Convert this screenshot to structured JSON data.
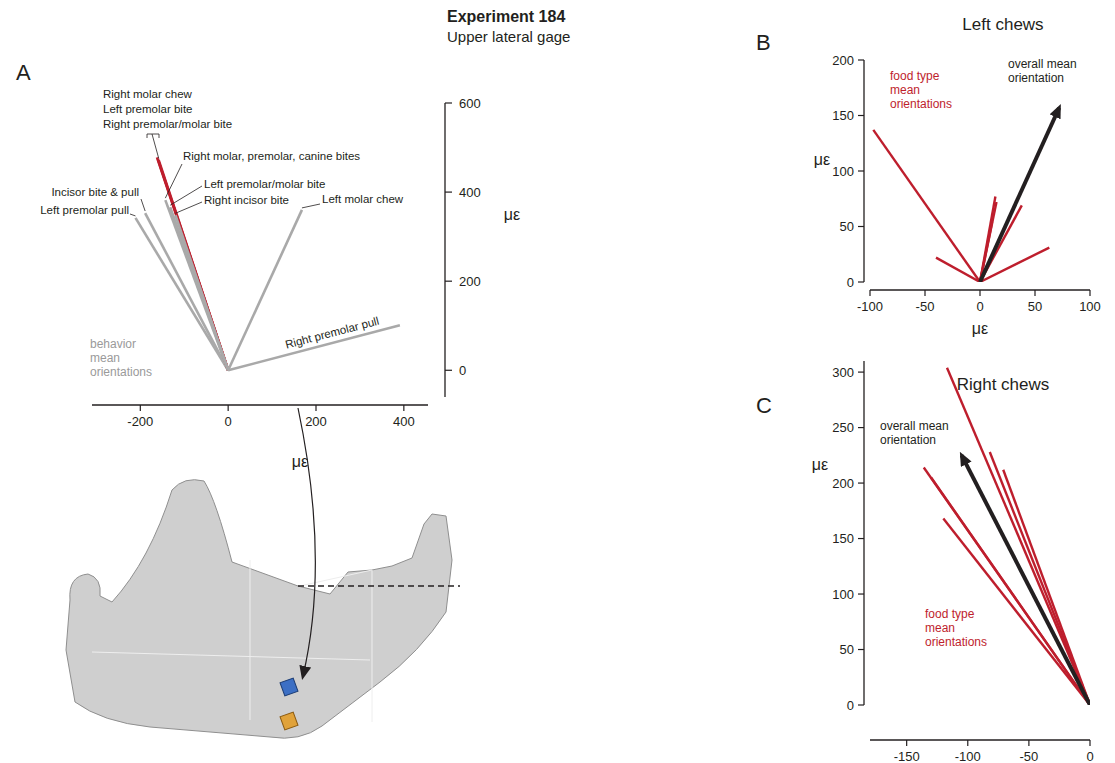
{
  "figure": {
    "title": "Experiment 184",
    "subtitle": "Upper lateral gage"
  },
  "chart_data": [
    {
      "type": "vector",
      "panel": "A",
      "xlabel": "με",
      "ylabel": "με",
      "xlim": [
        -310,
        455
      ],
      "ylim": [
        -60,
        600
      ],
      "xticks": [
        -200,
        0,
        200,
        400
      ],
      "yticks": [
        0,
        200,
        400,
        600
      ],
      "annotations": [
        "behavior mean orientations"
      ],
      "series": [
        {
          "name": "Left premolar pull",
          "color": "#a9a9a9",
          "x": [
            -211
          ],
          "values": [
            342
          ]
        },
        {
          "name": "Incisor bite & pull",
          "color": "#a9a9a9",
          "x": [
            -189
          ],
          "values": [
            353
          ]
        },
        {
          "name": "Right molar chew",
          "color": "#be1e2d",
          "x": [
            -162
          ],
          "values": [
            478
          ]
        },
        {
          "name": "Left premolar bite",
          "color": "#be1e2d",
          "x": [
            -160
          ],
          "values": [
            474
          ]
        },
        {
          "name": "Right premolar/molar bite",
          "color": "#be1e2d",
          "x": [
            -158
          ],
          "values": [
            471
          ]
        },
        {
          "name": "Right molar, premolar, canine bites",
          "color": "#a9a9a9",
          "x": [
            -143
          ],
          "values": [
            382
          ]
        },
        {
          "name": "Left premolar/molar bite",
          "color": "#a9a9a9",
          "x": [
            -132
          ],
          "values": [
            366
          ]
        },
        {
          "name": "Right incisor bite",
          "color": "#a9a9a9",
          "x": [
            -120
          ],
          "values": [
            348
          ]
        },
        {
          "name": "Left molar chew",
          "color": "#a9a9a9",
          "x": [
            168
          ],
          "values": [
            360
          ]
        },
        {
          "name": "Right premolar pull",
          "color": "#a9a9a9",
          "x": [
            391
          ],
          "values": [
            101
          ]
        }
      ]
    },
    {
      "type": "vector",
      "panel": "B",
      "title": "Left chews",
      "xlabel": "με",
      "ylabel": "με",
      "xlim": [
        -100,
        100
      ],
      "ylim": [
        0,
        200
      ],
      "xticks": [
        -100,
        -50,
        0,
        50,
        100
      ],
      "yticks": [
        0,
        50,
        100,
        150,
        200
      ],
      "annotations": [
        "food type mean orientations",
        "overall mean orientation"
      ],
      "series": [
        {
          "color": "#be1e2d",
          "x": [
            -97,
            -40,
            11,
            14,
            15,
            38,
            63
          ],
          "values": [
            137,
            22,
            54,
            77,
            72,
            69,
            31
          ]
        },
        {
          "color": "#231f20",
          "marker": "arrow",
          "x": [
            72
          ],
          "values": [
            157
          ]
        }
      ]
    },
    {
      "type": "vector",
      "panel": "C",
      "title": "Right chews",
      "ylabel": "με",
      "xlim": [
        -180,
        0
      ],
      "ylim": [
        0,
        310
      ],
      "xticks": [
        -150,
        -100,
        -50,
        0
      ],
      "yticks": [
        0,
        50,
        100,
        150,
        200,
        250,
        300
      ],
      "annotations": [
        "food type mean orientations",
        "overall mean orientation"
      ],
      "series": [
        {
          "color": "#be1e2d",
          "x": [
            -117,
            -82,
            -71,
            -136,
            -130,
            -120
          ],
          "values": [
            304,
            228,
            212,
            214,
            205,
            168
          ]
        },
        {
          "color": "#231f20",
          "marker": "arrow",
          "x": [
            -105
          ],
          "values": [
            225
          ]
        }
      ]
    }
  ]
}
